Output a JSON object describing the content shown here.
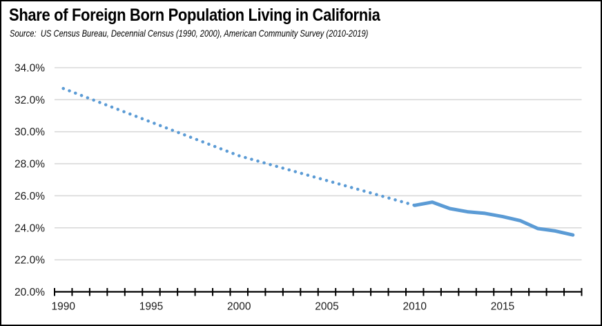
{
  "header": {
    "title": "Share of Foreign Born Population Living in California",
    "source": "Source:  US Census Bureau, Decennial Census (1990, 2000), American Community Survey (2010-2019)"
  },
  "colors": {
    "line": "#5B9BD5",
    "gridline": "#D9D9D9",
    "axis": "#000000",
    "background": "#FFFFFF",
    "border": "#000000"
  },
  "chart_data": {
    "type": "line",
    "title": "Share of Foreign Born Population Living in California",
    "source_note": "Source:  US Census Bureau, Decennial Census (1990, 2000), American Community Survey (2010-2019)",
    "xlabel": "",
    "ylabel": "",
    "x_axis": {
      "range": [
        1990,
        2019
      ],
      "tick_every_years": 1,
      "labeled_years": [
        1990,
        1995,
        2000,
        2005,
        2010,
        2015
      ]
    },
    "y_axis": {
      "min": 20,
      "max": 34,
      "step": 2,
      "tick_labels": [
        "20.0%",
        "22.0%",
        "24.0%",
        "26.0%",
        "28.0%",
        "30.0%",
        "32.0%",
        "34.0%"
      ]
    },
    "grid": {
      "horizontal": true,
      "vertical": false,
      "color": "#D9D9D9"
    },
    "legend": "none",
    "series": [
      {
        "id": "decennial-interpolated",
        "style": "dotted",
        "color": "#5B9BD5",
        "points": [
          [
            1990,
            32.7
          ],
          [
            2000,
            28.5
          ],
          [
            2010,
            25.4
          ]
        ]
      },
      {
        "id": "acs-annual",
        "style": "solid",
        "color": "#5B9BD5",
        "points": [
          [
            2010,
            25.4
          ],
          [
            2011,
            25.6
          ],
          [
            2012,
            25.2
          ],
          [
            2013,
            25.0
          ],
          [
            2014,
            24.9
          ],
          [
            2015,
            24.7
          ],
          [
            2016,
            24.45
          ],
          [
            2017,
            23.95
          ],
          [
            2018,
            23.8
          ],
          [
            2019,
            23.55
          ]
        ]
      }
    ]
  }
}
